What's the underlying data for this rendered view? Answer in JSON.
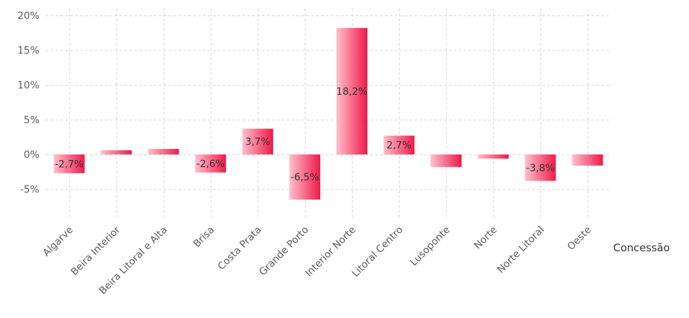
{
  "chart_data": {
    "type": "bar",
    "categories": [
      "Algarve",
      "Beira Interior",
      "Beira Litoral e Alta",
      "Brisa",
      "Costa Prata",
      "Grande Porto",
      "Interior Norte",
      "Litoral Centro",
      "Lusoponte",
      "Norte",
      "Norte Litoral",
      "Oeste"
    ],
    "values": [
      -2.7,
      0.6,
      0.8,
      -2.6,
      3.7,
      -6.5,
      18.2,
      2.7,
      -1.8,
      -0.6,
      -3.8,
      -1.6
    ],
    "data_labels": [
      "-2,7%",
      "",
      "",
      "-2,6%",
      "3,7%",
      "-6,5%",
      "18,2%",
      "2,7%",
      "",
      "",
      "-3,8%",
      ""
    ],
    "xlabel": "Concessão",
    "ylabel": "",
    "ylim": [
      -9,
      21
    ],
    "y_ticks": [
      -5,
      0,
      5,
      10,
      15,
      20
    ],
    "y_tick_labels": [
      "-5%",
      "0%",
      "5%",
      "10%",
      "15%",
      "20%"
    ],
    "grid": true,
    "colors": {
      "bar_light": "#ffc0cc",
      "bar_dark": "#f0194a",
      "grid": "#d4d4d4"
    }
  }
}
